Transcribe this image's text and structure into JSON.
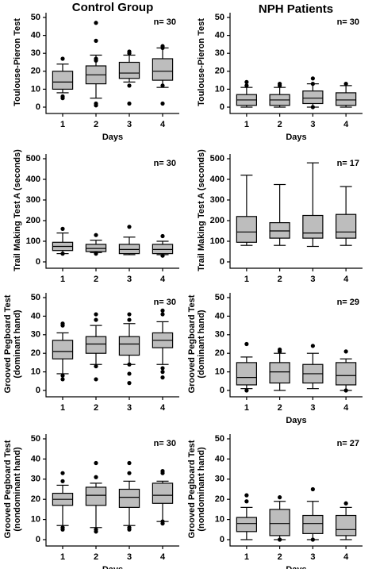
{
  "headers": [
    "Control Group",
    "NPH Patients"
  ],
  "chart_data": [
    {
      "type": "box",
      "ylabel": [
        "Toulouse-Pieron Test"
      ],
      "xlabel": "Days",
      "annotation": "n= 30",
      "color": "#bdbdbd",
      "categories": [
        "1",
        "2",
        "3",
        "4"
      ],
      "ylim": [
        0,
        50
      ],
      "yticks": [
        0,
        10,
        20,
        30,
        40,
        50
      ],
      "boxes": [
        {
          "whislo": 8,
          "q1": 10,
          "med": 14,
          "q3": 20,
          "whishi": 24,
          "fliers": [
            27,
            6,
            5
          ]
        },
        {
          "whislo": 5,
          "q1": 13,
          "med": 18,
          "q3": 23,
          "whishi": 29,
          "fliers": [
            47,
            37,
            27,
            26,
            2,
            1
          ]
        },
        {
          "whislo": 14,
          "q1": 16,
          "med": 19,
          "q3": 25,
          "whishi": 29,
          "fliers": [
            31,
            30,
            12,
            2
          ]
        },
        {
          "whislo": 11,
          "q1": 15,
          "med": 20,
          "q3": 27,
          "whishi": 33,
          "fliers": [
            34,
            33,
            12,
            2
          ]
        }
      ]
    },
    {
      "type": "box",
      "ylabel": [
        "Toulouse-Pieron Test"
      ],
      "xlabel": "Days",
      "annotation": "n= 30",
      "color": "#bdbdbd",
      "categories": [
        "1",
        "2",
        "3",
        "4"
      ],
      "ylim": [
        0,
        50
      ],
      "yticks": [
        0,
        10,
        20,
        30,
        40,
        50
      ],
      "boxes": [
        {
          "whislo": 0,
          "q1": 1,
          "med": 4,
          "q3": 7,
          "whishi": 11,
          "fliers": [
            14,
            12
          ]
        },
        {
          "whislo": 0,
          "q1": 1,
          "med": 4,
          "q3": 7,
          "whishi": 11,
          "fliers": [
            13,
            12
          ]
        },
        {
          "whislo": 0,
          "q1": 2,
          "med": 5,
          "q3": 9,
          "whishi": 13,
          "fliers": [
            16,
            13,
            0
          ]
        },
        {
          "whislo": 0,
          "q1": 1,
          "med": 4,
          "q3": 8,
          "whishi": 12,
          "fliers": [
            13
          ]
        }
      ]
    },
    {
      "type": "box",
      "ylabel": [
        "Trail Making Test  A  (seconds)"
      ],
      "annotation": "n= 30",
      "color": "#bdbdbd",
      "categories": [
        "1",
        "2",
        "3",
        "4"
      ],
      "ylim": [
        0,
        500
      ],
      "yticks": [
        0,
        100,
        200,
        300,
        400,
        500
      ],
      "boxes": [
        {
          "whislo": 40,
          "q1": 55,
          "med": 75,
          "q3": 95,
          "whishi": 140,
          "fliers": [
            160,
            40
          ]
        },
        {
          "whislo": 45,
          "q1": 50,
          "med": 65,
          "q3": 85,
          "whishi": 105,
          "fliers": [
            130,
            40
          ]
        },
        {
          "whislo": 35,
          "q1": 40,
          "med": 60,
          "q3": 85,
          "whishi": 120,
          "fliers": [
            170
          ]
        },
        {
          "whislo": 35,
          "q1": 40,
          "med": 60,
          "q3": 85,
          "whishi": 100,
          "fliers": [
            125,
            30
          ]
        }
      ]
    },
    {
      "type": "box",
      "ylabel": [
        "Trail Making Test  A  (seconds)"
      ],
      "annotation": "n= 17",
      "color": "#bdbdbd",
      "categories": [
        "1",
        "2",
        "3",
        "4"
      ],
      "ylim": [
        0,
        500
      ],
      "yticks": [
        0,
        100,
        200,
        300,
        400,
        500
      ],
      "boxes": [
        {
          "whislo": 80,
          "q1": 95,
          "med": 145,
          "q3": 220,
          "whishi": 420,
          "fliers": []
        },
        {
          "whislo": 80,
          "q1": 115,
          "med": 150,
          "q3": 190,
          "whishi": 375,
          "fliers": []
        },
        {
          "whislo": 75,
          "q1": 115,
          "med": 140,
          "q3": 225,
          "whishi": 480,
          "fliers": []
        },
        {
          "whislo": 80,
          "q1": 115,
          "med": 145,
          "q3": 230,
          "whishi": 365,
          "fliers": []
        }
      ]
    },
    {
      "type": "box",
      "ylabel": [
        "Grooved Pegboard Test",
        "(dominant hand)"
      ],
      "annotation": "n= 30",
      "color": "#bdbdbd",
      "categories": [
        "1",
        "2",
        "3",
        "4"
      ],
      "ylim": [
        0,
        50
      ],
      "yticks": [
        0,
        10,
        20,
        30,
        40,
        50
      ],
      "boxes": [
        {
          "whislo": 9,
          "q1": 17,
          "med": 21,
          "q3": 27,
          "whishi": 31,
          "fliers": [
            36,
            35,
            8,
            6
          ]
        },
        {
          "whislo": 14,
          "q1": 20,
          "med": 25,
          "q3": 29,
          "whishi": 35,
          "fliers": [
            41,
            38,
            13,
            6
          ]
        },
        {
          "whislo": 14,
          "q1": 19,
          "med": 25,
          "q3": 29,
          "whishi": 36,
          "fliers": [
            41,
            38,
            14,
            9,
            4
          ]
        },
        {
          "whislo": 14,
          "q1": 23,
          "med": 27,
          "q3": 31,
          "whishi": 37,
          "fliers": [
            43,
            41,
            12,
            10,
            7
          ]
        }
      ]
    },
    {
      "type": "box",
      "ylabel": [
        "Grooved Pegboard Test",
        "(dominant hand)"
      ],
      "xlabel": "Days",
      "annotation": "n= 29",
      "color": "#bdbdbd",
      "categories": [
        "1",
        "2",
        "3",
        "4"
      ],
      "ylim": [
        0,
        50
      ],
      "yticks": [
        0,
        10,
        20,
        30,
        40,
        50
      ],
      "boxes": [
        {
          "whislo": 1,
          "q1": 3,
          "med": 7,
          "q3": 15,
          "whishi": 18,
          "fliers": [
            25,
            0
          ]
        },
        {
          "whislo": 0,
          "q1": 4,
          "med": 10,
          "q3": 15,
          "whishi": 20,
          "fliers": [
            22,
            21
          ]
        },
        {
          "whislo": 1,
          "q1": 4,
          "med": 9,
          "q3": 14,
          "whishi": 20,
          "fliers": [
            24
          ]
        },
        {
          "whislo": 0,
          "q1": 3,
          "med": 8,
          "q3": 15,
          "whishi": 17,
          "fliers": [
            21,
            0
          ]
        }
      ]
    },
    {
      "type": "box",
      "ylabel": [
        "Grooved Pegboard Test",
        "(nondominant hand)"
      ],
      "xlabel": "Days",
      "annotation": "n= 30",
      "color": "#bdbdbd",
      "categories": [
        "1",
        "2",
        "3",
        "4"
      ],
      "ylim": [
        0,
        50
      ],
      "yticks": [
        0,
        10,
        20,
        30,
        40,
        50
      ],
      "boxes": [
        {
          "whislo": 7,
          "q1": 17,
          "med": 20,
          "q3": 23,
          "whishi": 27,
          "fliers": [
            33,
            29,
            6,
            5
          ]
        },
        {
          "whislo": 6,
          "q1": 17,
          "med": 22,
          "q3": 26,
          "whishi": 28,
          "fliers": [
            38,
            31,
            5,
            4
          ]
        },
        {
          "whislo": 7,
          "q1": 16,
          "med": 21,
          "q3": 25,
          "whishi": 29,
          "fliers": [
            38,
            33,
            6,
            5
          ]
        },
        {
          "whislo": 9,
          "q1": 18,
          "med": 22,
          "q3": 28,
          "whishi": 29,
          "fliers": [
            34,
            33,
            9,
            8
          ]
        }
      ]
    },
    {
      "type": "box",
      "ylabel": [
        "Grooved Pegboard Test",
        "(nondominant hand)"
      ],
      "xlabel": "Days",
      "annotation": "n= 27",
      "color": "#bdbdbd",
      "categories": [
        "1",
        "2",
        "3",
        "4"
      ],
      "ylim": [
        0,
        50
      ],
      "yticks": [
        0,
        10,
        20,
        30,
        40,
        50
      ],
      "boxes": [
        {
          "whislo": 0,
          "q1": 4,
          "med": 8,
          "q3": 11,
          "whishi": 16,
          "fliers": [
            22,
            19
          ]
        },
        {
          "whislo": 0,
          "q1": 2,
          "med": 8,
          "q3": 15,
          "whishi": 19,
          "fliers": [
            21,
            0
          ]
        },
        {
          "whislo": 0,
          "q1": 3,
          "med": 8,
          "q3": 12,
          "whishi": 19,
          "fliers": [
            25,
            0
          ]
        },
        {
          "whislo": 0,
          "q1": 2,
          "med": 5,
          "q3": 12,
          "whishi": 16,
          "fliers": [
            18
          ]
        }
      ]
    }
  ]
}
